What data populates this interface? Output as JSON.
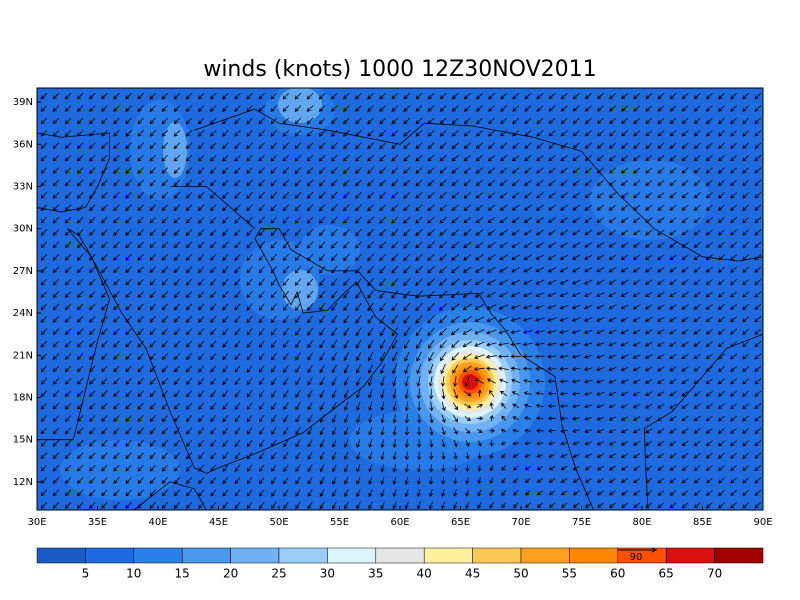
{
  "title": "winds (knots) 1000 12Z30NOV2011",
  "map": {
    "xlim": [
      30,
      90
    ],
    "ylim": [
      10,
      40
    ],
    "xticks": [
      {
        "value": 30,
        "label": "30E"
      },
      {
        "value": 35,
        "label": "35E"
      },
      {
        "value": 40,
        "label": "40E"
      },
      {
        "value": 45,
        "label": "45E"
      },
      {
        "value": 50,
        "label": "50E"
      },
      {
        "value": 55,
        "label": "55E"
      },
      {
        "value": 60,
        "label": "60E"
      },
      {
        "value": 65,
        "label": "65E"
      },
      {
        "value": 70,
        "label": "70E"
      },
      {
        "value": 75,
        "label": "75E"
      },
      {
        "value": 80,
        "label": "80E"
      },
      {
        "value": 85,
        "label": "85E"
      },
      {
        "value": 90,
        "label": "90E"
      }
    ],
    "yticks": [
      {
        "value": 12,
        "label": "12N"
      },
      {
        "value": 15,
        "label": "15N"
      },
      {
        "value": 18,
        "label": "18N"
      },
      {
        "value": 21,
        "label": "21N"
      },
      {
        "value": 24,
        "label": "24N"
      },
      {
        "value": 27,
        "label": "27N"
      },
      {
        "value": 30,
        "label": "30N"
      },
      {
        "value": 33,
        "label": "33N"
      },
      {
        "value": 36,
        "label": "36N"
      },
      {
        "value": 39,
        "label": "39N"
      }
    ]
  },
  "colorbar": {
    "levels": [
      5,
      10,
      15,
      20,
      25,
      30,
      35,
      40,
      45,
      50,
      55,
      60,
      65,
      70
    ],
    "colors": [
      "#1a5cc4",
      "#1e6ade",
      "#2a80e8",
      "#4a98ee",
      "#70b2f4",
      "#9cccf8",
      "#dcf6ff",
      "#e6e6e6",
      "#fff0a0",
      "#ffc850",
      "#ffa020",
      "#ff8800",
      "#ff5000",
      "#d81010",
      "#a00000"
    ]
  },
  "vector_reference": 90
}
